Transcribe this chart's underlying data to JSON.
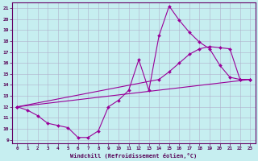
{
  "xlabel": "Windchill (Refroidissement éolien,°C)",
  "background_color": "#c6eef0",
  "grid_color": "#b0b0cc",
  "line_color": "#990099",
  "xlim": [
    -0.5,
    23.5
  ],
  "ylim": [
    8.7,
    21.5
  ],
  "yticks": [
    9,
    10,
    11,
    12,
    13,
    14,
    15,
    16,
    17,
    18,
    19,
    20,
    21
  ],
  "xticks": [
    0,
    1,
    2,
    3,
    4,
    5,
    6,
    7,
    8,
    9,
    10,
    11,
    12,
    13,
    14,
    15,
    16,
    17,
    18,
    19,
    20,
    21,
    22,
    23
  ],
  "line1_x": [
    0,
    1,
    2,
    3,
    4,
    5,
    6,
    7,
    8,
    9,
    10,
    11,
    12,
    13,
    14,
    15,
    16,
    17,
    18,
    19,
    20,
    21,
    22,
    23
  ],
  "line1_y": [
    12.0,
    11.7,
    11.2,
    10.5,
    10.3,
    10.1,
    9.2,
    9.2,
    9.8,
    12.0,
    12.6,
    13.5,
    16.3,
    13.5,
    18.5,
    21.2,
    19.9,
    18.8,
    17.9,
    17.3,
    15.8,
    14.7,
    14.5,
    14.5
  ],
  "line2_x": [
    0,
    14,
    15,
    16,
    17,
    18,
    19,
    20,
    21,
    22,
    23
  ],
  "line2_y": [
    12.0,
    14.5,
    15.2,
    16.0,
    16.8,
    17.3,
    17.5,
    17.4,
    17.3,
    14.5,
    14.5
  ],
  "line3_x": [
    0,
    23
  ],
  "line3_y": [
    12.0,
    14.5
  ]
}
